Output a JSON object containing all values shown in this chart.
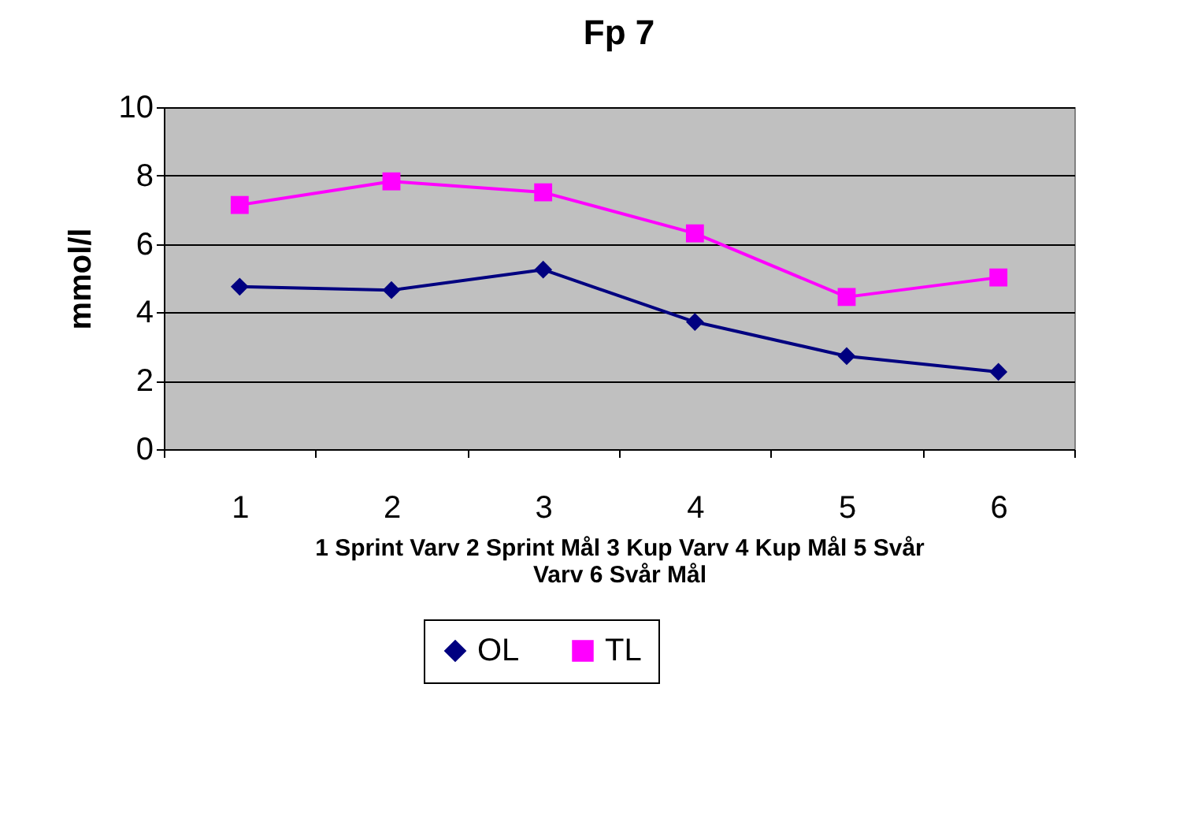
{
  "chart_data": {
    "type": "line",
    "title": "Fp 7",
    "xlabel": "1 Sprint Varv 2 Sprint Mål 3 Kup Varv 4 Kup Mål 5 Svår Varv 6 Svår Mål",
    "ylabel": "mmol/l",
    "categories": [
      "1",
      "2",
      "3",
      "4",
      "5",
      "6"
    ],
    "series": [
      {
        "name": "OL",
        "color": "#000080",
        "marker": "diamond",
        "values": [
          4.75,
          4.65,
          5.25,
          3.72,
          2.72,
          2.26
        ]
      },
      {
        "name": "TL",
        "color": "#ff00ff",
        "marker": "square",
        "values": [
          7.14,
          7.83,
          7.51,
          6.31,
          4.45,
          5.02
        ]
      }
    ],
    "ylim": [
      0,
      10
    ],
    "yticks": [
      0,
      2,
      4,
      6,
      8,
      10
    ],
    "grid": "y",
    "legend": "bottom"
  }
}
